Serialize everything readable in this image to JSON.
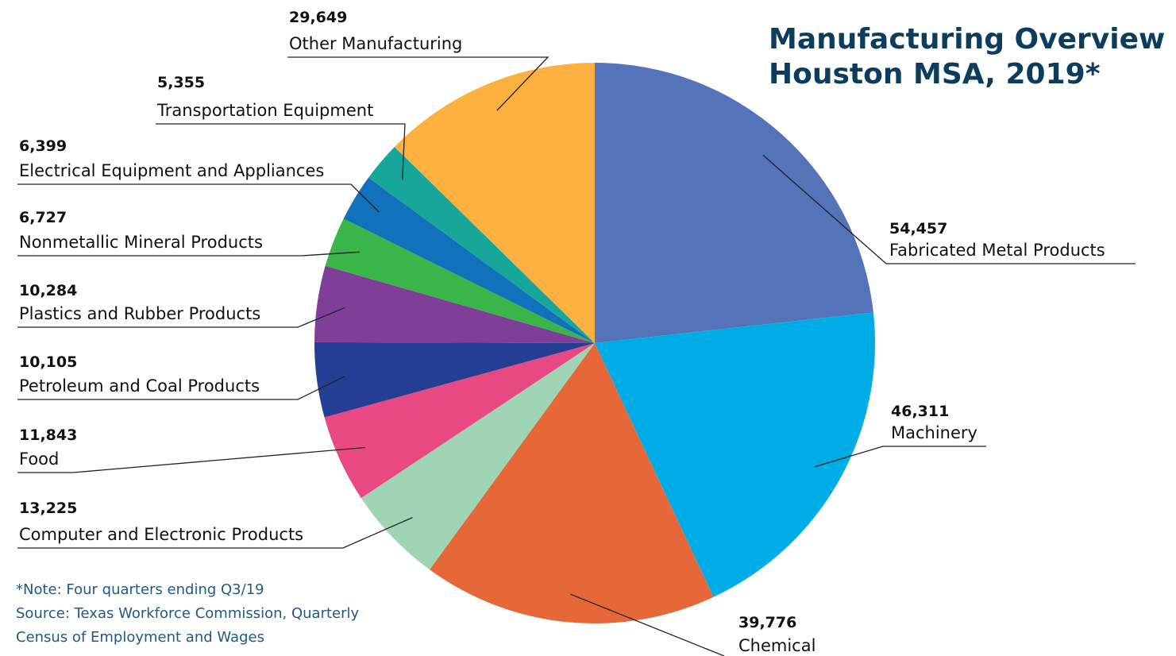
{
  "title": {
    "line1": "Manufacturing Overview",
    "line2": "Houston MSA, 2019*"
  },
  "note": {
    "line1": "*Note: Four quarters ending Q3/19",
    "line2": "Source: Texas Workforce Commission, Quarterly",
    "line3": "Census of Employment and Wages"
  },
  "colors": {
    "title": "#0d3d5c",
    "note": "#1f5a86"
  },
  "chart_data": {
    "type": "pie",
    "title": "Manufacturing Overview Houston MSA, 2019*",
    "slices": [
      {
        "label": "Fabricated Metal Products",
        "value": 54457,
        "display": "54,457",
        "color": "#5573b9"
      },
      {
        "label": "Machinery",
        "value": 46311,
        "display": "46,311",
        "color": "#00ace6"
      },
      {
        "label": "Chemical",
        "value": 39776,
        "display": "39,776",
        "color": "#e66838"
      },
      {
        "label": "Computer and Electronic Products",
        "value": 13225,
        "display": "13,225",
        "color": "#9fd5b5"
      },
      {
        "label": "Food",
        "value": 11843,
        "display": "11,843",
        "color": "#e84983"
      },
      {
        "label": "Petroleum and Coal Products",
        "value": 10105,
        "display": "10,105",
        "color": "#233e93"
      },
      {
        "label": "Plastics and Rubber Products",
        "value": 10284,
        "display": "10,284",
        "color": "#7f3e98"
      },
      {
        "label": "Nonmetallic Mineral Products",
        "value": 6727,
        "display": "6,727",
        "color": "#3ab54a"
      },
      {
        "label": "Electrical Equipment and Appliances",
        "value": 6399,
        "display": "6,399",
        "color": "#1172bb"
      },
      {
        "label": "Transportation Equipment",
        "value": 5355,
        "display": "5,355",
        "color": "#17a69a"
      },
      {
        "label": "Other Manufacturing",
        "value": 29649,
        "display": "29,649",
        "color": "#fbb040"
      }
    ]
  }
}
